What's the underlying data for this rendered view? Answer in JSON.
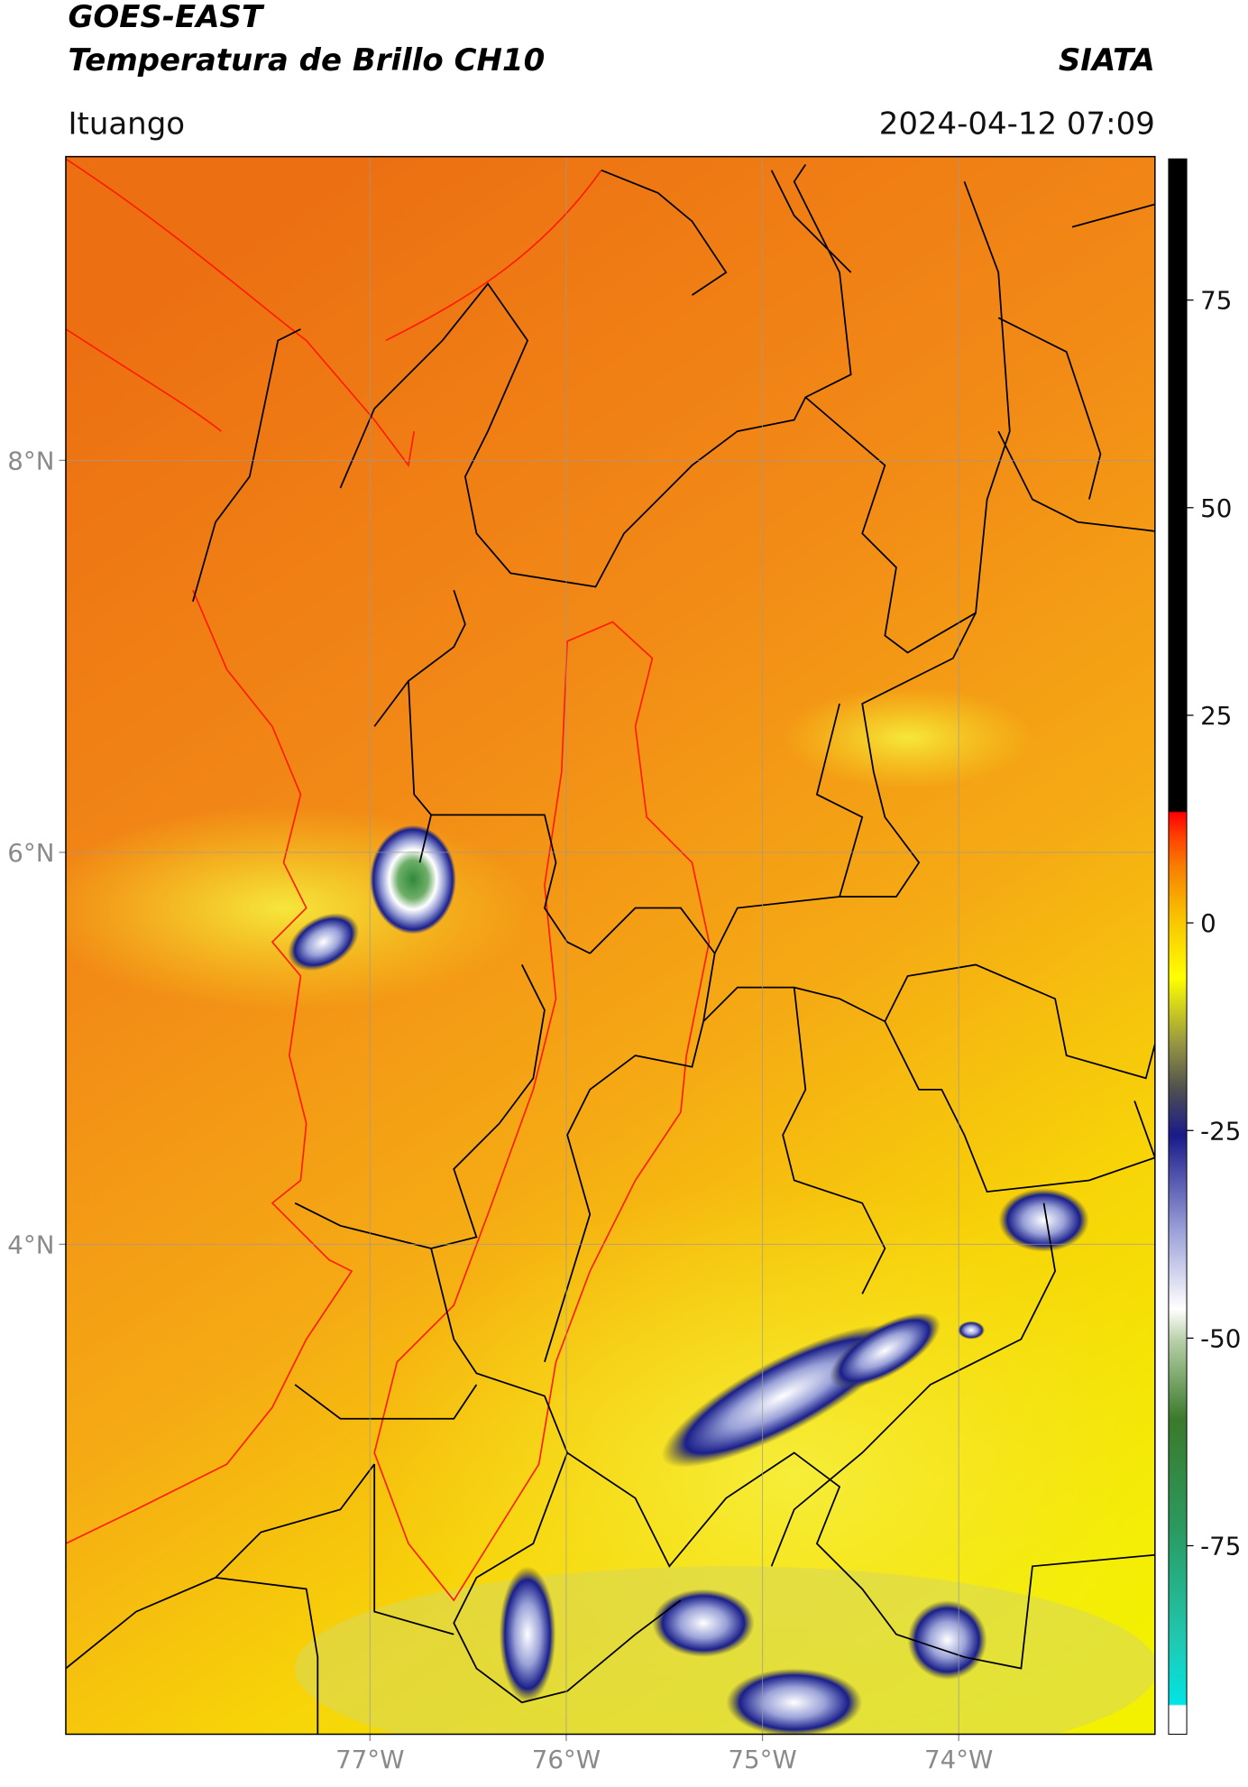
{
  "header": {
    "title": "GOES-EAST",
    "product": "Temperatura de Brillo CH10",
    "brand": "SIATA",
    "location": "Ituango",
    "datetime": "2024-04-12 07:09"
  },
  "map": {
    "xlim": [
      -78.55,
      -73.0
    ],
    "ylim": [
      1.5,
      9.55
    ],
    "xticks": [
      {
        "value": -77,
        "label": "77°W"
      },
      {
        "value": -76,
        "label": "76°W"
      },
      {
        "value": -75,
        "label": "75°W"
      },
      {
        "value": -74,
        "label": "74°W"
      }
    ],
    "yticks": [
      {
        "value": 4,
        "label": "4°N"
      },
      {
        "value": 6,
        "label": "6°N"
      },
      {
        "value": 8,
        "label": "8°N"
      }
    ],
    "grid": true
  },
  "colorbar": {
    "lim": [
      -97.7,
      92
    ],
    "ticks": [
      -75,
      -50,
      -25,
      0,
      25,
      50,
      75
    ]
  }
}
